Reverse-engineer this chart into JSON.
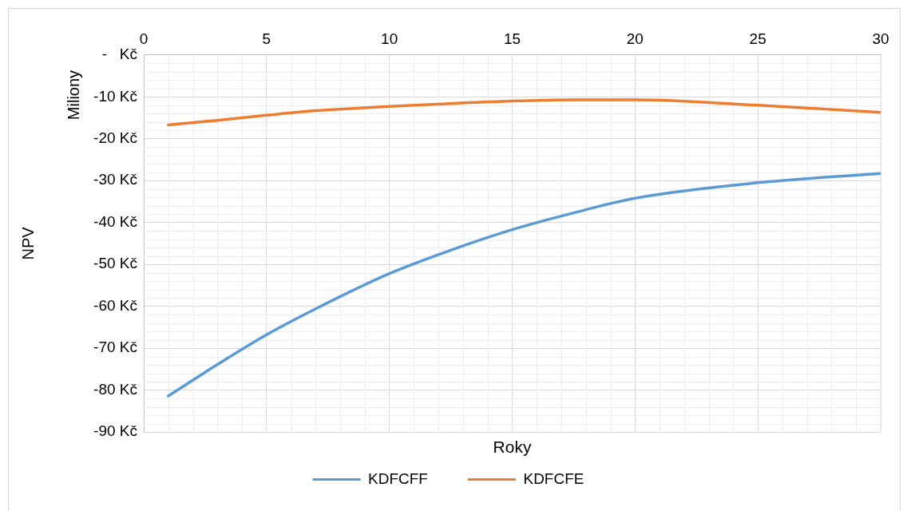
{
  "chart_data": {
    "type": "line",
    "xlabel": "Roky",
    "ylabel": "NPV",
    "annotations": [
      "Miliony"
    ],
    "xlim": [
      0,
      30
    ],
    "xticks": [
      0,
      5,
      10,
      15,
      20,
      25,
      30
    ],
    "ylim": [
      -90,
      0
    ],
    "yticks": [
      {
        "value": -90,
        "label": "-90 Kč"
      },
      {
        "value": -80,
        "label": "-80 Kč"
      },
      {
        "value": -70,
        "label": "-70 Kč"
      },
      {
        "value": -60,
        "label": "-60 Kč"
      },
      {
        "value": -50,
        "label": "-50 Kč"
      },
      {
        "value": -40,
        "label": "-40 Kč"
      },
      {
        "value": -30,
        "label": "-30 Kč"
      },
      {
        "value": -20,
        "label": "-20 Kč"
      },
      {
        "value": -10,
        "label": "-10 Kč"
      },
      {
        "value": 0,
        "label": "-   Kč"
      }
    ],
    "grid": true,
    "legend": "bottom",
    "marker": "none",
    "line_style": "solid",
    "x": [
      1,
      3,
      5,
      7,
      10,
      12.5,
      15,
      17.5,
      20,
      25,
      30
    ],
    "series": [
      {
        "name": "KDFCFF",
        "color": "#5b9bd5",
        "values": [
          -81.4,
          -73.9,
          -66.8,
          -60.6,
          -52.2,
          -46.6,
          -41.7,
          -37.7,
          -34.2,
          -30.5,
          -28.3
        ]
      },
      {
        "name": "KDFCFE",
        "color": "#ed7d31",
        "values": [
          -16.7,
          -15.6,
          -14.4,
          -13.3,
          -12.3,
          -11.6,
          -11.0,
          -10.7,
          -10.7,
          -12.0,
          -13.7
        ]
      }
    ]
  }
}
